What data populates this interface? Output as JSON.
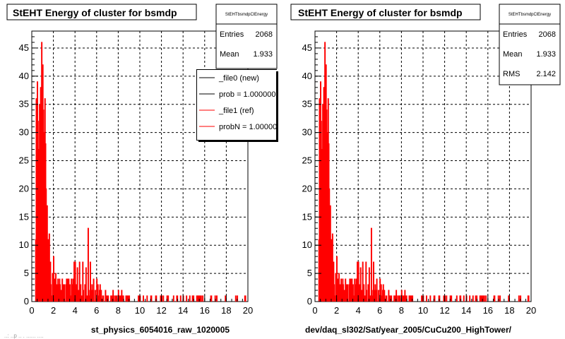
{
  "page": {
    "footer_fragment": "..: ..p .. . ...... ...."
  },
  "chart_data": [
    {
      "type": "histogram",
      "title": "StEHT Energy of cluster for bsmdp",
      "xlabel": "st_physics_6054016_raw_1020005",
      "ylabel": "",
      "xlim": [
        0,
        20
      ],
      "ylim": [
        0,
        48
      ],
      "grid": true,
      "x_ticks": [
        "0",
        "2",
        "4",
        "6",
        "8",
        "10",
        "12",
        "14",
        "16",
        "18",
        "20"
      ],
      "y_ticks": [
        "0",
        "5",
        "10",
        "15",
        "20",
        "25",
        "30",
        "35",
        "40",
        "45"
      ],
      "stats": {
        "header": "StEHTbsmdpClEnergy",
        "rows": [
          {
            "label": "Entries",
            "value": "2068"
          },
          {
            "label": "Mean",
            "value": "1.933"
          }
        ]
      },
      "legend": {
        "position": "top-right",
        "entries": [
          {
            "label": "_file0 (new)",
            "color": "#000000"
          },
          {
            "label": "prob = 1.000000",
            "color": "#000000"
          },
          {
            "label": "_file1 (ref)",
            "color": "#ff0000"
          },
          {
            "label": "probN = 1.000000",
            "color": "#ff0000"
          }
        ]
      },
      "series": [
        {
          "color": "#ff0000",
          "peaks": [
            [
              0.4,
              36
            ],
            [
              0.5,
              39
            ],
            [
              0.6,
              27
            ],
            [
              0.7,
              35
            ],
            [
              0.8,
              38
            ],
            [
              0.9,
              46
            ],
            [
              1.0,
              42
            ],
            [
              1.1,
              30
            ],
            [
              1.2,
              36
            ],
            [
              1.3,
              20
            ],
            [
              1.4,
              17
            ],
            [
              1.5,
              11
            ],
            [
              1.6,
              12
            ],
            [
              1.7,
              7
            ],
            [
              1.9,
              5
            ],
            [
              2.0,
              8
            ],
            [
              2.2,
              5
            ],
            [
              2.4,
              4
            ],
            [
              2.6,
              3
            ],
            [
              2.8,
              4
            ],
            [
              3.0,
              3
            ],
            [
              3.3,
              4
            ],
            [
              3.5,
              3
            ],
            [
              3.8,
              4
            ],
            [
              3.9,
              7
            ],
            [
              4.0,
              7
            ],
            [
              4.2,
              6
            ],
            [
              4.4,
              7
            ],
            [
              4.7,
              7
            ],
            [
              5.0,
              6
            ],
            [
              5.2,
              13
            ],
            [
              5.4,
              7
            ],
            [
              5.7,
              4
            ],
            [
              6.0,
              4
            ],
            [
              6.3,
              3
            ],
            [
              6.8,
              2
            ],
            [
              7.5,
              2
            ],
            [
              8.0,
              2
            ],
            [
              8.3,
              2
            ],
            [
              9.0,
              1
            ],
            [
              10.0,
              1
            ],
            [
              11.0,
              1
            ],
            [
              12.0,
              1
            ],
            [
              13.4,
              1
            ],
            [
              14.0,
              1
            ],
            [
              15.8,
              1
            ],
            [
              16.6,
              1
            ]
          ]
        }
      ]
    },
    {
      "type": "histogram",
      "title": "StEHT Energy of cluster for bsmdp",
      "xlabel": "dev/daq_sl302/Sat/year_2005/CuCu200_HighTower/",
      "ylabel": "",
      "xlim": [
        0,
        20
      ],
      "ylim": [
        0,
        48
      ],
      "grid": true,
      "x_ticks": [
        "0",
        "2",
        "4",
        "6",
        "8",
        "10",
        "12",
        "14",
        "16",
        "18",
        "20"
      ],
      "y_ticks": [
        "0",
        "5",
        "10",
        "15",
        "20",
        "25",
        "30",
        "35",
        "40",
        "45"
      ],
      "stats": {
        "header": "StEHTbsmdpClEnergy",
        "rows": [
          {
            "label": "Entries",
            "value": "2068"
          },
          {
            "label": "Mean",
            "value": "1.933"
          },
          {
            "label": "RMS",
            "value": "2.142"
          }
        ]
      },
      "series": [
        {
          "color": "#ff0000",
          "peaks": [
            [
              0.4,
              36
            ],
            [
              0.5,
              39
            ],
            [
              0.6,
              27
            ],
            [
              0.7,
              35
            ],
            [
              0.8,
              38
            ],
            [
              0.9,
              46
            ],
            [
              1.0,
              42
            ],
            [
              1.1,
              30
            ],
            [
              1.2,
              36
            ],
            [
              1.3,
              20
            ],
            [
              1.4,
              17
            ],
            [
              1.5,
              11
            ],
            [
              1.6,
              12
            ],
            [
              1.7,
              7
            ],
            [
              1.9,
              5
            ],
            [
              2.0,
              8
            ],
            [
              2.2,
              5
            ],
            [
              2.4,
              4
            ],
            [
              2.6,
              3
            ],
            [
              2.8,
              4
            ],
            [
              3.0,
              3
            ],
            [
              3.3,
              4
            ],
            [
              3.5,
              3
            ],
            [
              3.8,
              4
            ],
            [
              3.9,
              7
            ],
            [
              4.0,
              7
            ],
            [
              4.2,
              6
            ],
            [
              4.4,
              7
            ],
            [
              4.7,
              7
            ],
            [
              5.0,
              6
            ],
            [
              5.2,
              13
            ],
            [
              5.4,
              7
            ],
            [
              5.7,
              4
            ],
            [
              6.0,
              4
            ],
            [
              6.3,
              3
            ],
            [
              6.8,
              2
            ],
            [
              7.5,
              2
            ],
            [
              8.0,
              2
            ],
            [
              8.3,
              2
            ],
            [
              9.0,
              1
            ],
            [
              10.0,
              1
            ],
            [
              11.0,
              1
            ],
            [
              12.0,
              1
            ],
            [
              13.4,
              1
            ],
            [
              14.0,
              1
            ],
            [
              15.8,
              1
            ],
            [
              16.6,
              1
            ]
          ]
        }
      ]
    }
  ]
}
